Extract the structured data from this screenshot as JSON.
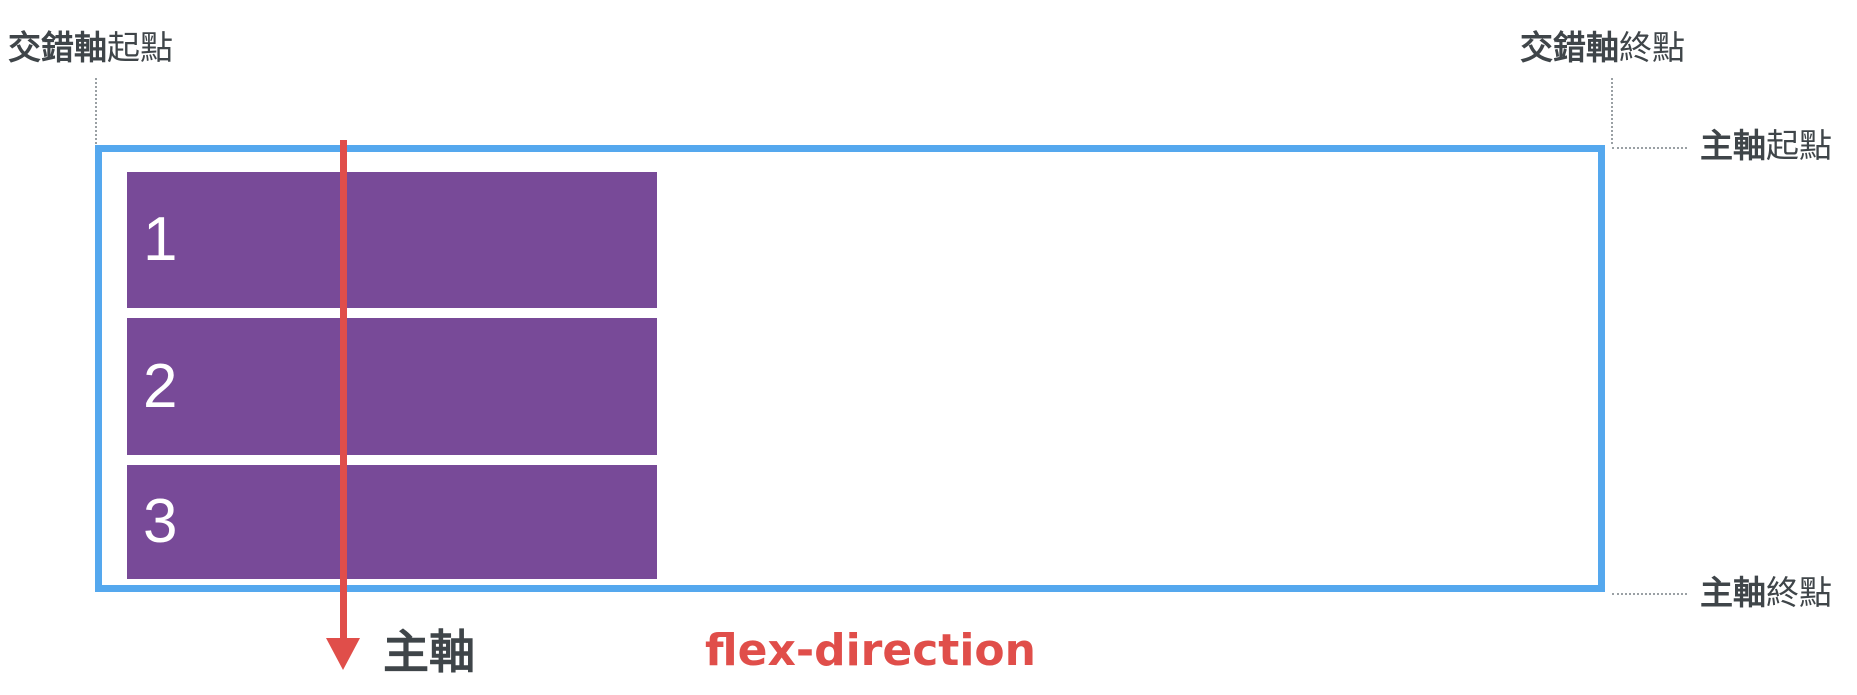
{
  "colors": {
    "container_border": "#55a8ee",
    "item_fill": "#784a98",
    "item_text": "#ffffff",
    "axis_line": "#e04e4a",
    "label_text": "#3f4549",
    "guide_line": "#9aa0a4"
  },
  "labels": {
    "cross_start": {
      "strong": "交錯軸",
      "normal": "起點"
    },
    "cross_end": {
      "strong": "交錯軸",
      "normal": "終點"
    },
    "main_start": {
      "strong": "主軸",
      "normal": "起點"
    },
    "main_end": {
      "strong": "主軸",
      "normal": "終點"
    }
  },
  "items": [
    "1",
    "2",
    "3"
  ],
  "main_axis": {
    "label": "主軸",
    "direction": "down",
    "arrow_icon": "arrow-down-icon"
  },
  "property_label": "flex-direction"
}
